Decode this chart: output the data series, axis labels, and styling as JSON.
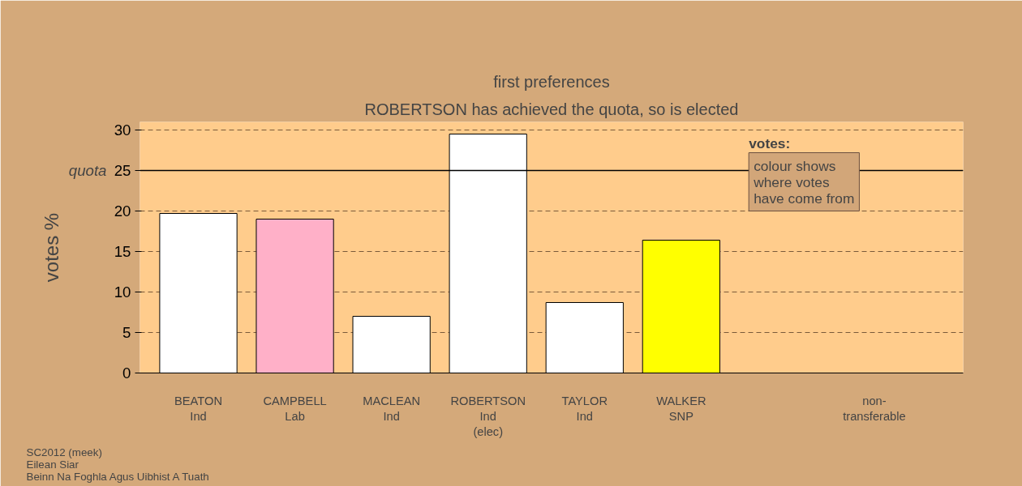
{
  "chart_data": {
    "type": "bar",
    "title": "first preferences",
    "subtitle": "ROBERTSON has achieved the quota, so is elected",
    "ylabel": "votes %",
    "categories": [
      "BEATON\nInd",
      "CAMPBELL\nLab",
      "MACLEAN\nInd",
      "ROBERTSON\nInd\n(elec)",
      "TAYLOR\nInd",
      "WALKER\nSNP",
      null,
      "non-\ntransferable"
    ],
    "values": [
      19.7,
      19.0,
      7.0,
      29.5,
      8.7,
      16.4,
      null,
      null
    ],
    "colors": [
      "#ffffff",
      "#ffb0c8",
      "#ffffff",
      "#ffffff",
      "#ffffff",
      "#ffff00",
      "#ffffff",
      "#ffffff"
    ],
    "ylim": [
      0,
      31
    ],
    "yticks": [
      0,
      5,
      10,
      15,
      20,
      25,
      30
    ],
    "grid": "y",
    "ref_lines": [
      {
        "axis": "y",
        "value": 25,
        "label": "quota",
        "color": "#000000",
        "line_style": "solid"
      }
    ],
    "annotations": [
      "votes:",
      "colour shows\nwhere votes\nhave come from",
      "SC2012 (meek)\nEilean Siar\nBeinn Na Foghla Agus Uibhist A Tuath"
    ]
  }
}
